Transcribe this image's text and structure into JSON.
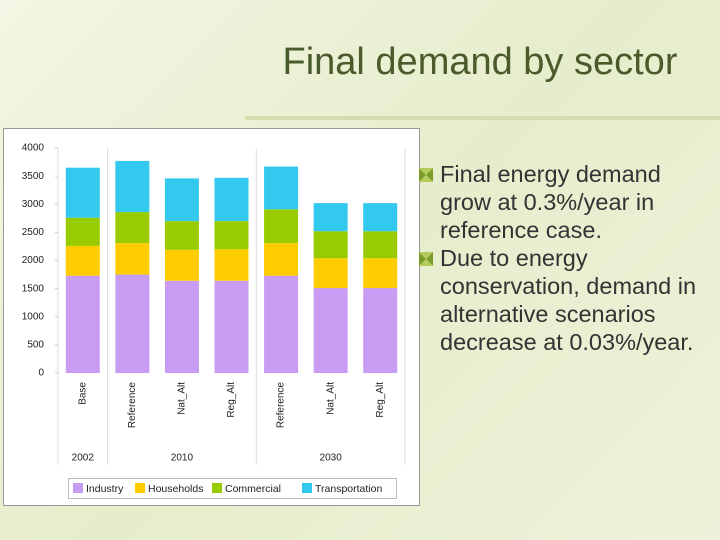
{
  "title": "Final demand by sector",
  "bullets": [
    "Final energy demand grow at 0.3%/year in reference case.",
    "Due to energy conservation, demand in alternative scenarios decrease at 0.03%/year."
  ],
  "chart_data": {
    "type": "bar",
    "stacked": true,
    "groups": [
      {
        "name": "2002",
        "categories": [
          "Base"
        ]
      },
      {
        "name": "2010",
        "categories": [
          "Reference",
          "Nat_Alt",
          "Reg_Alt"
        ]
      },
      {
        "name": "2030",
        "categories": [
          "Reference",
          "Nat_Alt",
          "Reg_Alt"
        ]
      }
    ],
    "series": [
      {
        "name": "Industry",
        "color": "#c79cf2",
        "values": [
          1730,
          1750,
          1640,
          1640,
          1730,
          1510,
          1510
        ]
      },
      {
        "name": "Households",
        "color": "#ffcc00",
        "values": [
          530,
          560,
          550,
          560,
          580,
          530,
          530
        ]
      },
      {
        "name": "Commercial",
        "color": "#99cc00",
        "values": [
          500,
          550,
          510,
          500,
          600,
          480,
          480
        ]
      },
      {
        "name": "Transportation",
        "color": "#33c8ee",
        "values": [
          890,
          910,
          760,
          770,
          760,
          500,
          500
        ]
      }
    ],
    "ylim": [
      0,
      4000
    ],
    "yticks": [
      0,
      500,
      1000,
      1500,
      2000,
      2500,
      3000,
      3500,
      4000
    ]
  }
}
